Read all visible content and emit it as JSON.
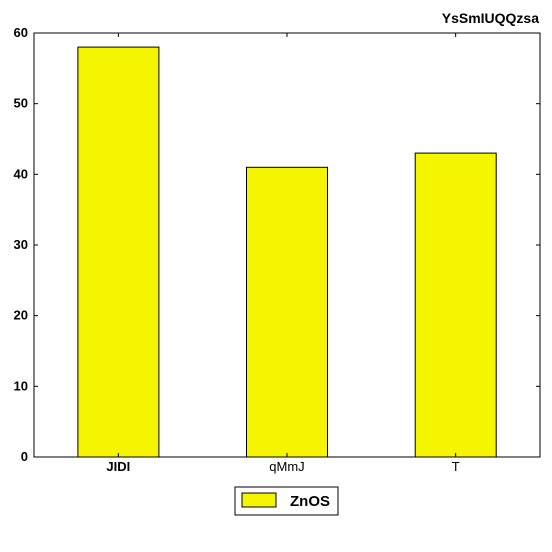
{
  "chart_data": {
    "type": "bar",
    "title": "YsSmIUQQzsa",
    "xlabel": "",
    "ylabel": "",
    "categories": [
      "JIDI",
      "qMmJ",
      "T"
    ],
    "series": [
      {
        "name": "ZnOS",
        "values": [
          58,
          41,
          43
        ],
        "color": "#f5f500"
      }
    ],
    "ylim": [
      0,
      60
    ],
    "yticks": [
      0,
      10,
      20,
      30,
      40,
      50,
      60
    ],
    "grid": false,
    "legend_position": "bottom-center"
  }
}
